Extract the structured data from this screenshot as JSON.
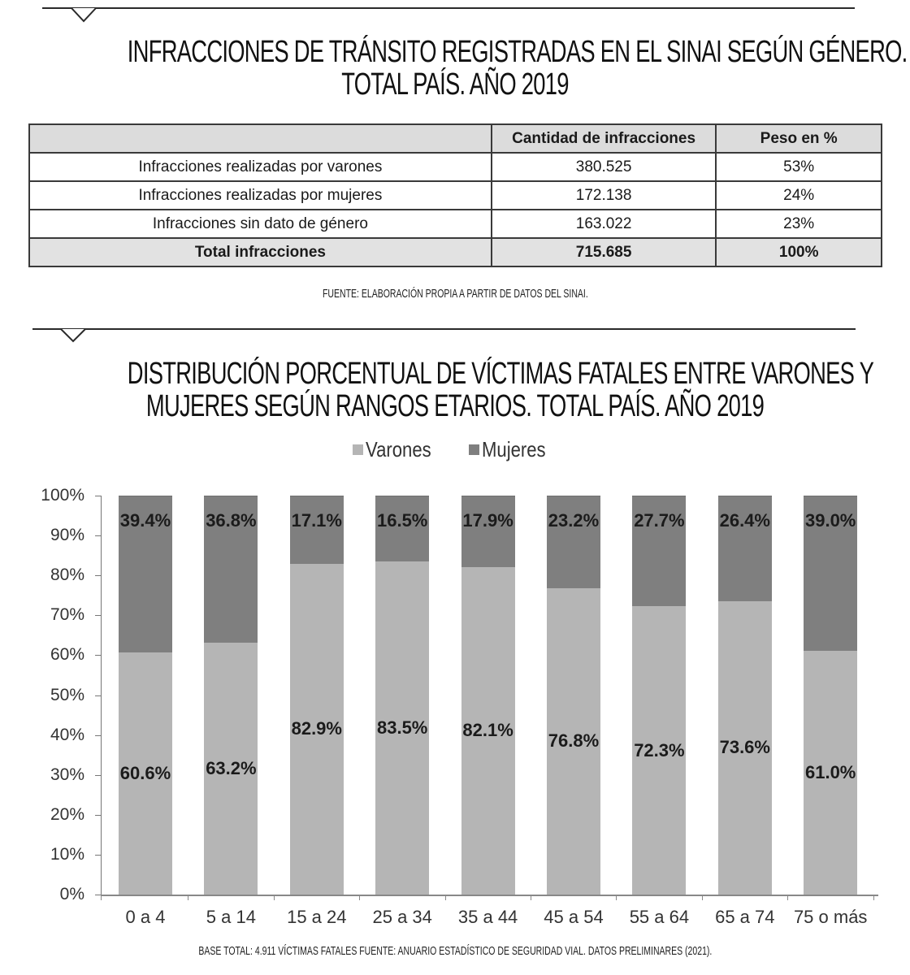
{
  "section1": {
    "title_lines": [
      "INFRACCIONES DE TRÁNSITO REGISTRADAS EN EL SINAI SEGÚN GÉNERO.",
      "TOTAL PAÍS. AÑO 2019"
    ],
    "table": {
      "headers": [
        "",
        "Cantidad de infracciones",
        "Peso en %"
      ],
      "rows": [
        [
          "Infracciones realizadas por varones",
          "380.525",
          "53%"
        ],
        [
          "Infracciones realizadas por mujeres",
          "172.138",
          "24%"
        ],
        [
          "Infracciones sin dato de género",
          "163.022",
          "23%"
        ]
      ],
      "total": [
        "Total infracciones",
        "715.685",
        "100%"
      ]
    },
    "source": "FUENTE: ELABORACIÓN PROPIA A PARTIR DE DATOS DEL SINAI."
  },
  "section2": {
    "title_lines": [
      "DISTRIBUCIÓN PORCENTUAL DE VÍCTIMAS FATALES ENTRE VARONES Y",
      "MUJERES SEGÚN RANGOS ETARIOS. TOTAL PAÍS. AÑO 2019"
    ],
    "legend": [
      {
        "label": "Varones",
        "color": "#b5b5b5"
      },
      {
        "label": "Mujeres",
        "color": "#7f7f7f"
      }
    ],
    "source": "BASE TOTAL: 4.911 VÍCTIMAS FATALES  FUENTE: ANUARIO ESTADÍSTICO DE SEGURIDAD VIAL. DATOS PRELIMINARES (2021)."
  },
  "chart_data": [
    {
      "type": "table",
      "title": "INFRACCIONES DE TRÁNSITO REGISTRADAS EN EL SINAI SEGÚN GÉNERO. TOTAL PAÍS. AÑO 2019",
      "columns": [
        "",
        "Cantidad de infracciones",
        "Peso en %"
      ],
      "rows": [
        [
          "Infracciones realizadas por varones",
          380525,
          53
        ],
        [
          "Infracciones realizadas por mujeres",
          172138,
          24
        ],
        [
          "Infracciones sin dato de género",
          163022,
          23
        ],
        [
          "Total infracciones",
          715685,
          100
        ]
      ]
    },
    {
      "type": "bar",
      "stacked": true,
      "title": "DISTRIBUCIÓN PORCENTUAL DE VÍCTIMAS FATALES ENTRE VARONES Y MUJERES SEGÚN RANGOS ETARIOS. TOTAL PAÍS. AÑO 2019",
      "categories": [
        "0 a 4",
        "5 a 14",
        "15 a 24",
        "25 a 34",
        "35 a 44",
        "45 a 54",
        "55 a 64",
        "65 a 74",
        "75 o más"
      ],
      "series": [
        {
          "name": "Varones",
          "color": "#b5b5b5",
          "values": [
            60.6,
            63.2,
            82.9,
            83.5,
            82.1,
            76.8,
            72.3,
            73.6,
            61.0
          ],
          "labels": [
            "60.6%",
            "63.2%",
            "82.9%",
            "83.5%",
            "82.1%",
            "76.8%",
            "72.3%",
            "73.6%",
            "61.0%"
          ]
        },
        {
          "name": "Mujeres",
          "color": "#7f7f7f",
          "values": [
            39.4,
            36.8,
            17.1,
            16.5,
            17.9,
            23.2,
            27.7,
            26.4,
            39.0
          ],
          "labels": [
            "39.4%",
            "36.8%",
            "17.1%",
            "16.5%",
            "17.9%",
            "23.2%",
            "27.7%",
            "26.4%",
            "39.0%"
          ]
        }
      ],
      "xlabel": "",
      "ylabel": "",
      "ylim": [
        0,
        100
      ],
      "yticks": [
        "0%",
        "10%",
        "20%",
        "30%",
        "40%",
        "50%",
        "60%",
        "70%",
        "80%",
        "90%",
        "100%"
      ],
      "legend_position": "top",
      "grid": false
    }
  ]
}
